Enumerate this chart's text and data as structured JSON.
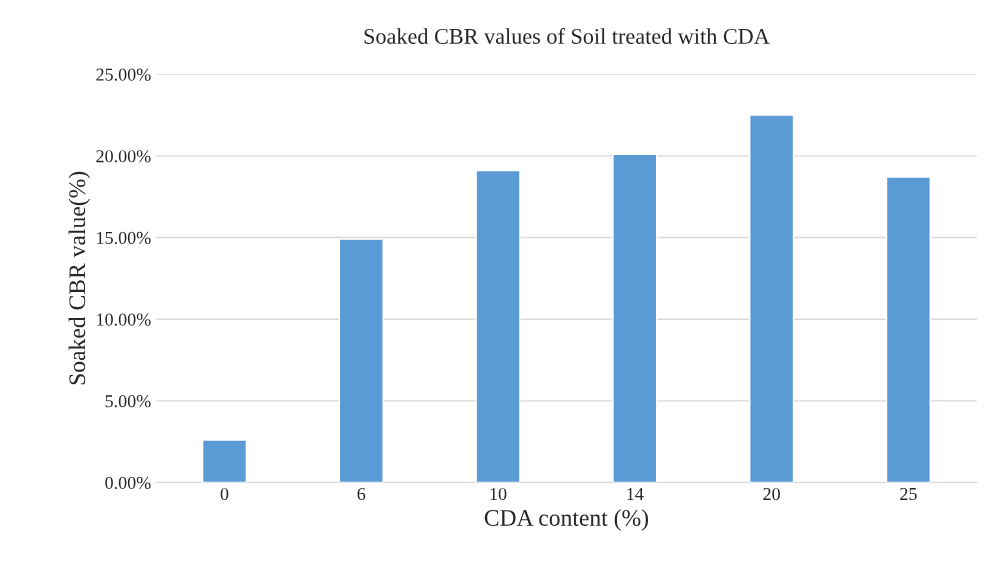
{
  "chart_data": {
    "type": "bar",
    "title": "Soaked CBR values of Soil treated with CDA",
    "xlabel": "CDA content (%)",
    "ylabel": "Soaked CBR value(%)",
    "categories": [
      "0",
      "6",
      "10",
      "14",
      "20",
      "25"
    ],
    "values": [
      2.6,
      14.9,
      19.1,
      20.1,
      22.5,
      18.7
    ],
    "color": "#5b9bd5",
    "ylim": [
      0,
      25
    ],
    "yticks": [
      {
        "value": 0,
        "label": "0.00%"
      },
      {
        "value": 5,
        "label": "5.00%"
      },
      {
        "value": 10,
        "label": "10.00%"
      },
      {
        "value": 15,
        "label": "15.00%"
      },
      {
        "value": 20,
        "label": "20.00%"
      },
      {
        "value": 25,
        "label": "25.00%"
      }
    ],
    "grid": "y"
  }
}
